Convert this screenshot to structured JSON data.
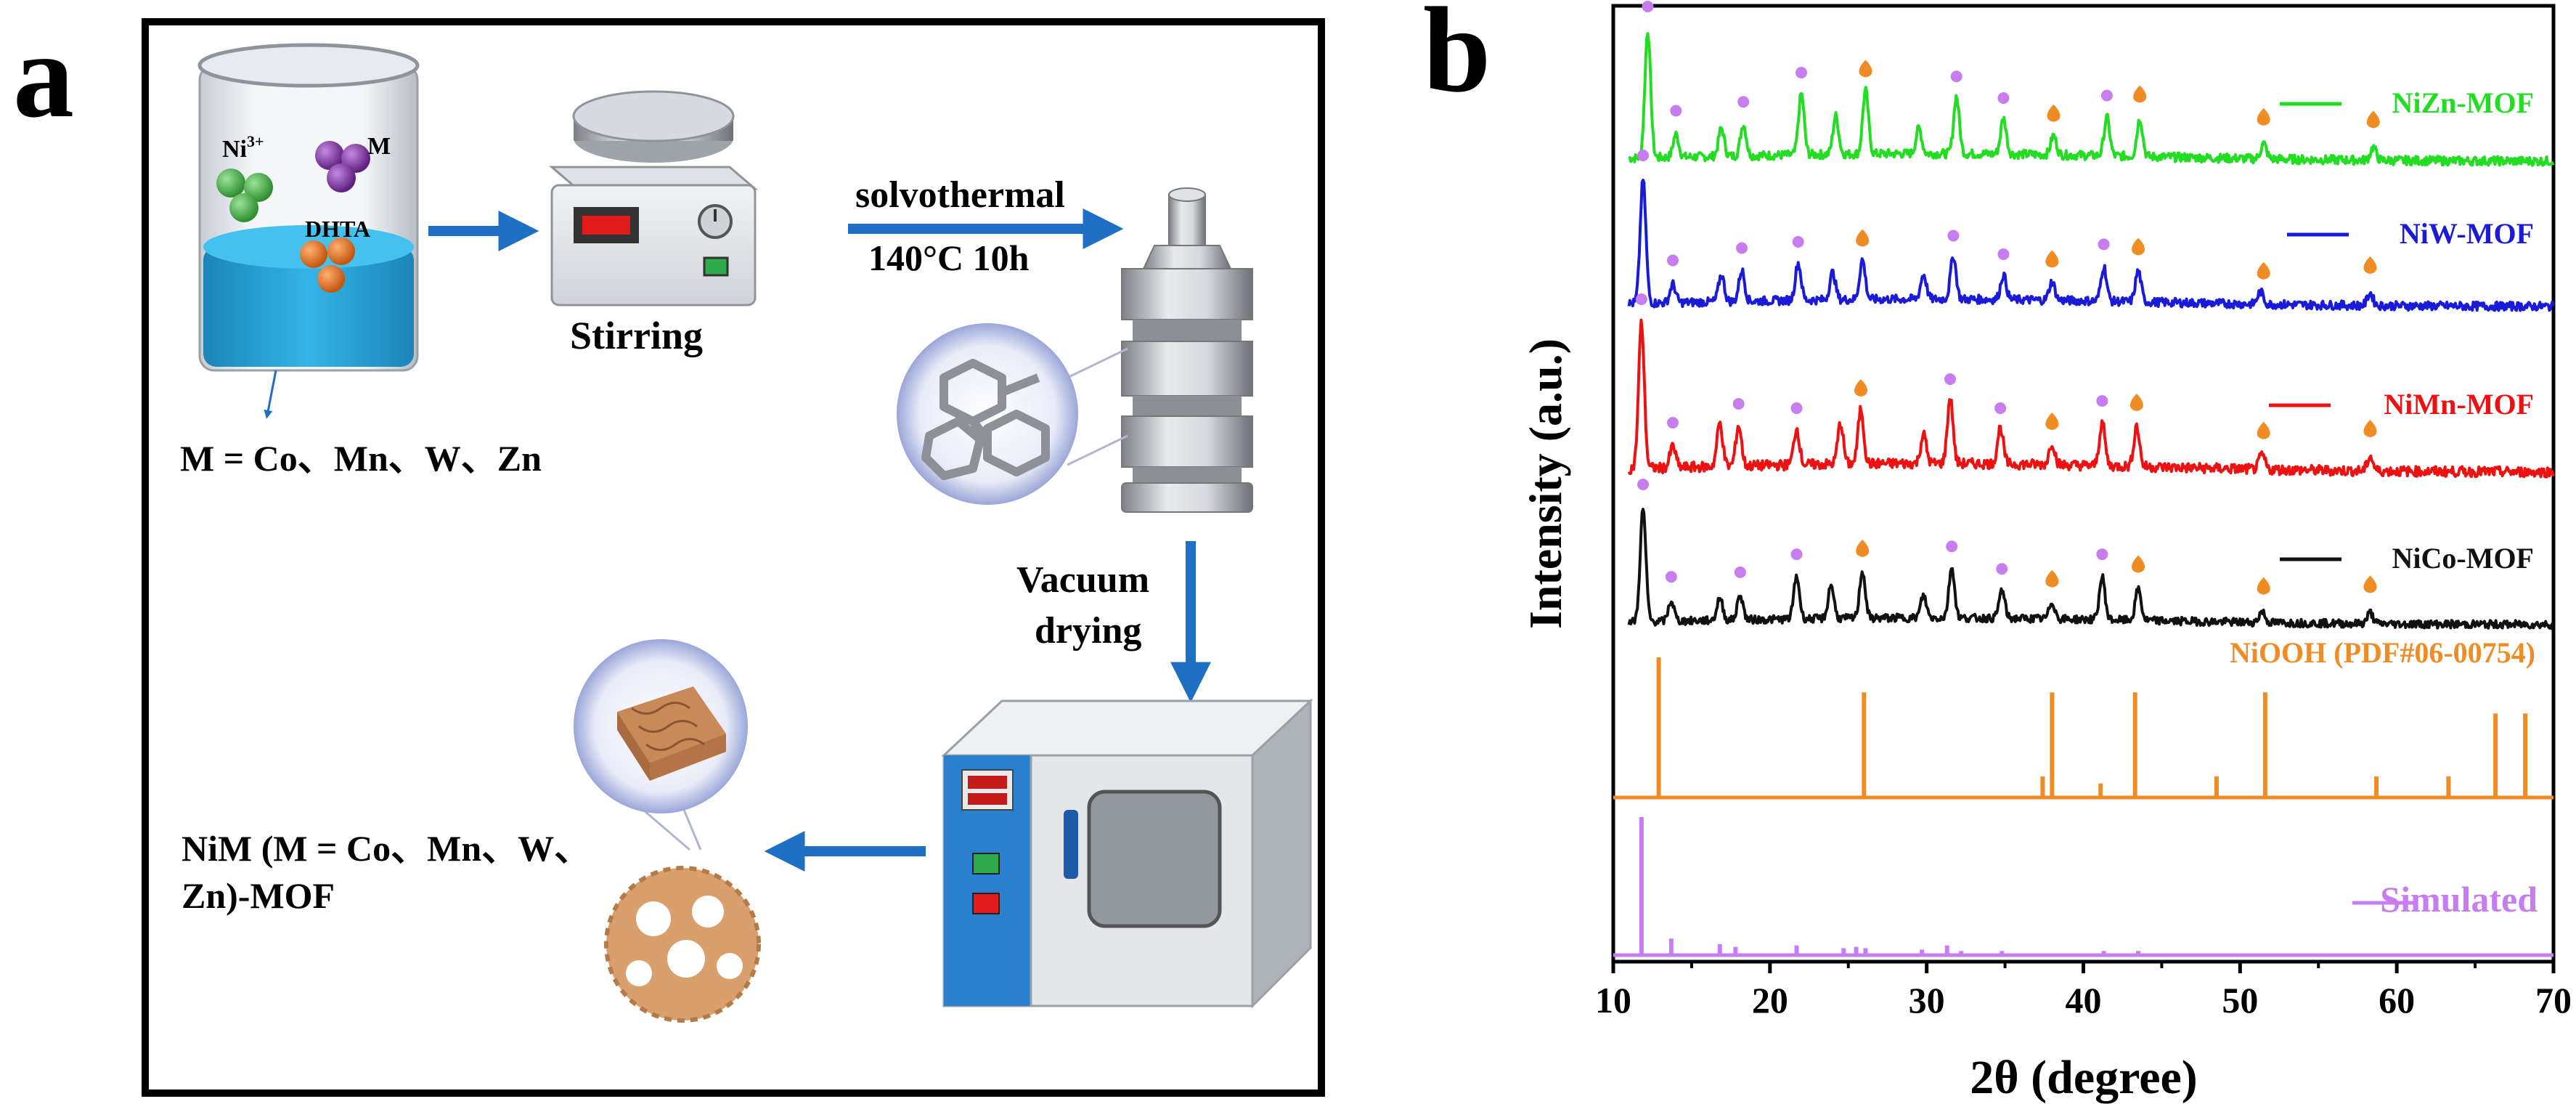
{
  "panel_a": {
    "letter": "a",
    "ions": {
      "ni": "Ni",
      "ni_charge": "3+",
      "metal": "M",
      "ligand": "DHTA"
    },
    "metal_definition": "M = Co、Mn、W、Zn",
    "stirring_label": "Stirring",
    "solvothermal_label": "solvothermal",
    "condition_label": "140°C 10h",
    "vacuum_line1": "Vacuum",
    "vacuum_line2": "drying",
    "product_line1": "NiM (M = Co、Mn、W、",
    "product_line2": "Zn)-MOF"
  },
  "panel_b": {
    "letter": "b"
  },
  "colors": {
    "arrow": "#1f6fc4",
    "liquid": "#29a3d6",
    "ni_ball": "#3aa63a",
    "m_ball": "#7b2e9e",
    "dhta_ball": "#e07020",
    "mof": "#d9a06e",
    "oven_panel": "#2a7fcf"
  },
  "chart_data": {
    "type": "line",
    "title": "",
    "xlabel": "2θ (degree)",
    "ylabel": "Intensity (a.u.)",
    "xlim": [
      10,
      70
    ],
    "xticks": [
      10,
      20,
      30,
      40,
      50,
      60,
      70
    ],
    "yticks": "none (stacked, offset traces)",
    "series": [
      {
        "name": "NiZn-MOF",
        "color": "#22dd22",
        "baseline_rank": 1,
        "peaks_2theta": [
          12.2,
          14.0,
          16.9,
          18.3,
          22.0,
          24.2,
          26.1,
          29.5,
          31.9,
          34.9,
          38.1,
          41.5,
          43.6,
          51.5,
          58.5
        ],
        "peak_heights": [
          1.0,
          0.18,
          0.22,
          0.25,
          0.48,
          0.3,
          0.5,
          0.2,
          0.45,
          0.28,
          0.15,
          0.3,
          0.3,
          0.12,
          0.1
        ],
        "circle_markers": [
          12.2,
          14.0,
          18.3,
          22.0,
          31.9,
          34.9,
          41.5
        ],
        "diamond_markers": [
          26.1,
          38.1,
          43.6,
          51.5,
          58.5
        ]
      },
      {
        "name": "NiW-MOF",
        "color": "#1a1ad9",
        "baseline_rank": 2,
        "peaks_2theta": [
          11.9,
          13.8,
          16.9,
          18.2,
          21.8,
          24.0,
          25.9,
          29.8,
          31.7,
          34.9,
          38.0,
          41.3,
          43.5,
          51.3,
          58.3
        ],
        "peak_heights": [
          1.0,
          0.15,
          0.22,
          0.25,
          0.3,
          0.22,
          0.32,
          0.2,
          0.35,
          0.2,
          0.15,
          0.28,
          0.25,
          0.1,
          0.1
        ],
        "circle_markers": [
          11.9,
          13.8,
          18.2,
          21.8,
          31.7,
          34.9,
          41.3
        ],
        "diamond_markers": [
          25.9,
          38.0,
          43.5,
          51.5,
          58.3
        ]
      },
      {
        "name": "NiMn-MOF",
        "color": "#ee1111",
        "baseline_rank": 3,
        "peaks_2theta": [
          11.8,
          13.8,
          16.8,
          18.0,
          21.7,
          24.5,
          25.8,
          29.8,
          31.5,
          34.7,
          38.0,
          41.2,
          43.4,
          51.4,
          58.3
        ],
        "peak_heights": [
          1.0,
          0.15,
          0.3,
          0.28,
          0.25,
          0.28,
          0.38,
          0.2,
          0.45,
          0.25,
          0.15,
          0.3,
          0.28,
          0.1,
          0.1
        ],
        "circle_markers": [
          11.8,
          13.8,
          18.0,
          21.7,
          31.5,
          34.7,
          41.2
        ],
        "diamond_markers": [
          25.8,
          38.0,
          43.4,
          51.5,
          58.3
        ]
      },
      {
        "name": "NiCo-MOF",
        "color": "#111111",
        "baseline_rank": 4,
        "peaks_2theta": [
          11.9,
          13.7,
          16.8,
          18.1,
          21.7,
          23.9,
          25.9,
          29.8,
          31.6,
          34.8,
          38.0,
          41.2,
          43.5,
          51.4,
          58.3
        ],
        "peak_heights": [
          1.0,
          0.18,
          0.2,
          0.22,
          0.38,
          0.3,
          0.42,
          0.2,
          0.45,
          0.25,
          0.15,
          0.38,
          0.28,
          0.1,
          0.1
        ],
        "circle_markers": [
          11.9,
          13.7,
          18.1,
          21.7,
          31.6,
          34.8,
          41.2
        ],
        "diamond_markers": [
          25.9,
          38.0,
          43.5,
          51.5,
          58.3
        ]
      },
      {
        "name": "NiOOH (PDF#06-00754)",
        "type": "stick",
        "color": "#f08c24",
        "baseline_rank": 5,
        "x": [
          12.9,
          26.0,
          37.4,
          38.0,
          41.1,
          43.3,
          48.5,
          51.6,
          58.7,
          63.3,
          66.3,
          68.2
        ],
        "y": [
          100,
          75,
          15,
          75,
          10,
          75,
          15,
          75,
          15,
          15,
          60,
          60
        ]
      },
      {
        "name": "Simulated",
        "type": "stick",
        "color": "#c77df0",
        "baseline_rank": 6,
        "x": [
          11.8,
          13.7,
          16.8,
          17.8,
          21.7,
          24.7,
          25.5,
          26.1,
          29.7,
          31.3,
          32.2,
          34.8,
          41.3,
          43.5
        ],
        "y": [
          100,
          12,
          8,
          6,
          7,
          5,
          6,
          5,
          4,
          7,
          3,
          3,
          3,
          3
        ]
      }
    ],
    "legend": "each series labelled at right end of its trace"
  }
}
